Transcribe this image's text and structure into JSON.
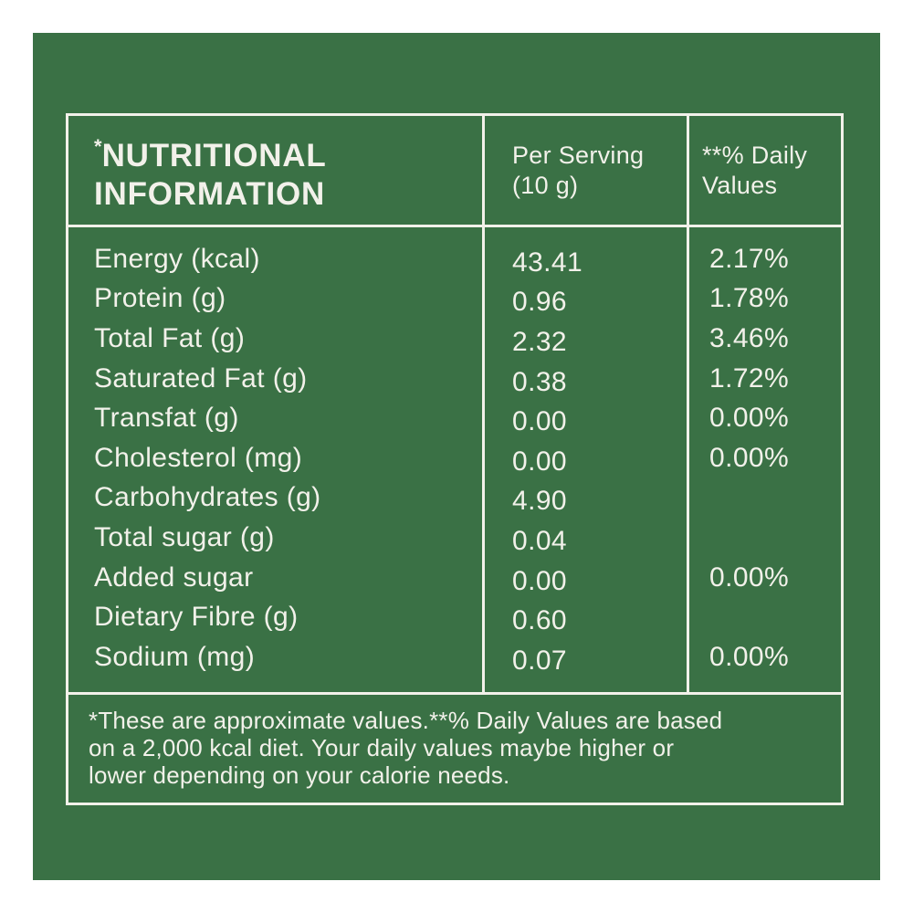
{
  "colors": {
    "page_background": "#ffffff",
    "panel_green": "#3A7145",
    "text_white": "#F2F1EA",
    "border_white": "#F2F1EA"
  },
  "table": {
    "title_asterisk": "*",
    "title_lines": [
      "NUTRITIONAL",
      "INFORMATION"
    ],
    "col_serving_lines": [
      "Per Serving",
      "(10 g)"
    ],
    "col_daily_lines": [
      "**% Daily",
      "Values"
    ],
    "rows": [
      {
        "label": "Energy (kcal)",
        "per_serving": "43.41",
        "daily_value": "2.17%"
      },
      {
        "label": "Protein (g)",
        "per_serving": "0.96",
        "daily_value": "1.78%"
      },
      {
        "label": "Total Fat (g)",
        "per_serving": "2.32",
        "daily_value": "3.46%"
      },
      {
        "label": "Saturated Fat (g)",
        "per_serving": "0.38",
        "daily_value": "1.72%"
      },
      {
        "label": "Transfat (g)",
        "per_serving": "0.00",
        "daily_value": "0.00%"
      },
      {
        "label": "Cholesterol (mg)",
        "per_serving": "0.00",
        "daily_value": "0.00%"
      },
      {
        "label": "Carbohydrates (g)",
        "per_serving": "4.90",
        "daily_value": ""
      },
      {
        "label": "Total sugar (g)",
        "per_serving": "0.04",
        "daily_value": ""
      },
      {
        "label": "Added sugar",
        "per_serving": "0.00",
        "daily_value": "0.00%"
      },
      {
        "label": "Dietary Fibre (g)",
        "per_serving": "0.60",
        "daily_value": ""
      },
      {
        "label": "Sodium (mg)",
        "per_serving": "0.07",
        "daily_value": "0.00%"
      }
    ],
    "footnote_lines": [
      "*These are approximate values.**% Daily Values are based",
      "on a 2,000 kcal diet. Your daily values maybe higher or",
      "lower depending on your calorie needs."
    ]
  }
}
